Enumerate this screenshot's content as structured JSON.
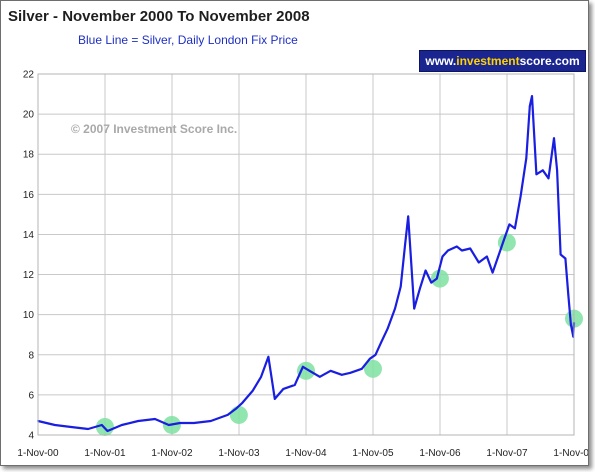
{
  "header": {
    "title": "Silver - November 2000 To November 2008",
    "subtitle": "Blue Line = Silver, Daily London Fix Price",
    "watermark": "© 2007 Investment Score Inc."
  },
  "brand": {
    "prefix": "www.",
    "accent": "investment",
    "suffix": "score.com",
    "background": "#1a2590",
    "accent_color": "#ffd200"
  },
  "colors": {
    "line": "#1a1ee0",
    "highlight": "#7ee0a0",
    "grid": "#c8c8c8"
  },
  "chart_data": {
    "type": "line",
    "title": "Silver - November 2000 To November 2008",
    "subtitle": "Blue Line = Silver, Daily London Fix Price",
    "xlabel": "",
    "ylabel": "",
    "x_ticks": [
      "1-Nov-00",
      "1-Nov-01",
      "1-Nov-02",
      "1-Nov-03",
      "1-Nov-04",
      "1-Nov-05",
      "1-Nov-06",
      "1-Nov-07",
      "1-Nov-08"
    ],
    "y_ticks": [
      4,
      6,
      8,
      10,
      12,
      14,
      16,
      18,
      20,
      22
    ],
    "ylim": [
      4,
      22
    ],
    "xlim": [
      "2000-11-01",
      "2008-11-01"
    ],
    "grid": true,
    "legend": "none",
    "series": [
      {
        "name": "Silver",
        "x": [
          "2000-11-01",
          "2001-02-01",
          "2001-05-01",
          "2001-08-01",
          "2001-10-15",
          "2001-11-15",
          "2002-02-01",
          "2002-05-01",
          "2002-08-01",
          "2002-10-15",
          "2002-12-15",
          "2003-03-01",
          "2003-06-01",
          "2003-09-01",
          "2003-10-15",
          "2003-11-20",
          "2004-01-15",
          "2004-03-01",
          "2004-04-10",
          "2004-05-15",
          "2004-07-01",
          "2004-09-01",
          "2004-10-15",
          "2004-11-20",
          "2005-01-15",
          "2005-03-15",
          "2005-05-15",
          "2005-07-01",
          "2005-09-01",
          "2005-10-15",
          "2005-11-15",
          "2005-12-15",
          "2006-01-20",
          "2006-03-01",
          "2006-04-01",
          "2006-04-25",
          "2006-05-12",
          "2006-06-14",
          "2006-07-15",
          "2006-08-15",
          "2006-09-15",
          "2006-10-15",
          "2006-11-15",
          "2006-12-15",
          "2007-02-01",
          "2007-03-01",
          "2007-04-15",
          "2007-06-01",
          "2007-07-15",
          "2007-08-15",
          "2007-09-15",
          "2007-10-15",
          "2007-11-15",
          "2007-12-15",
          "2008-01-15",
          "2008-02-15",
          "2008-03-05",
          "2008-03-17",
          "2008-04-10",
          "2008-05-15",
          "2008-06-15",
          "2008-07-15",
          "2008-08-01",
          "2008-08-20",
          "2008-09-15",
          "2008-10-01",
          "2008-10-15",
          "2008-10-28",
          "2008-11-01"
        ],
        "values": [
          4.7,
          4.5,
          4.4,
          4.3,
          4.5,
          4.2,
          4.5,
          4.7,
          4.8,
          4.5,
          4.6,
          4.6,
          4.7,
          5.0,
          5.3,
          5.6,
          6.2,
          6.9,
          7.9,
          5.8,
          6.3,
          6.5,
          7.4,
          7.2,
          6.9,
          7.2,
          7.0,
          7.1,
          7.3,
          7.8,
          8.0,
          8.6,
          9.3,
          10.3,
          11.4,
          13.5,
          14.9,
          10.3,
          11.3,
          12.2,
          11.6,
          11.8,
          12.9,
          13.2,
          13.4,
          13.2,
          13.3,
          12.6,
          12.9,
          12.1,
          12.9,
          13.7,
          14.5,
          14.3,
          15.9,
          17.8,
          20.4,
          20.9,
          17.0,
          17.2,
          16.8,
          18.8,
          17.2,
          13.0,
          12.8,
          11.0,
          9.5,
          8.9,
          9.6
        ]
      }
    ],
    "annotations": [
      {
        "label": "highlight",
        "x": "2001-11-01",
        "y": 4.4
      },
      {
        "label": "highlight",
        "x": "2002-11-01",
        "y": 4.5
      },
      {
        "label": "highlight",
        "x": "2003-11-01",
        "y": 5.0
      },
      {
        "label": "highlight",
        "x": "2004-11-01",
        "y": 7.2
      },
      {
        "label": "highlight",
        "x": "2005-11-01",
        "y": 7.3
      },
      {
        "label": "highlight",
        "x": "2006-11-01",
        "y": 11.8
      },
      {
        "label": "highlight",
        "x": "2007-11-01",
        "y": 13.6
      },
      {
        "label": "highlight",
        "x": "2008-11-01",
        "y": 9.8
      }
    ]
  }
}
